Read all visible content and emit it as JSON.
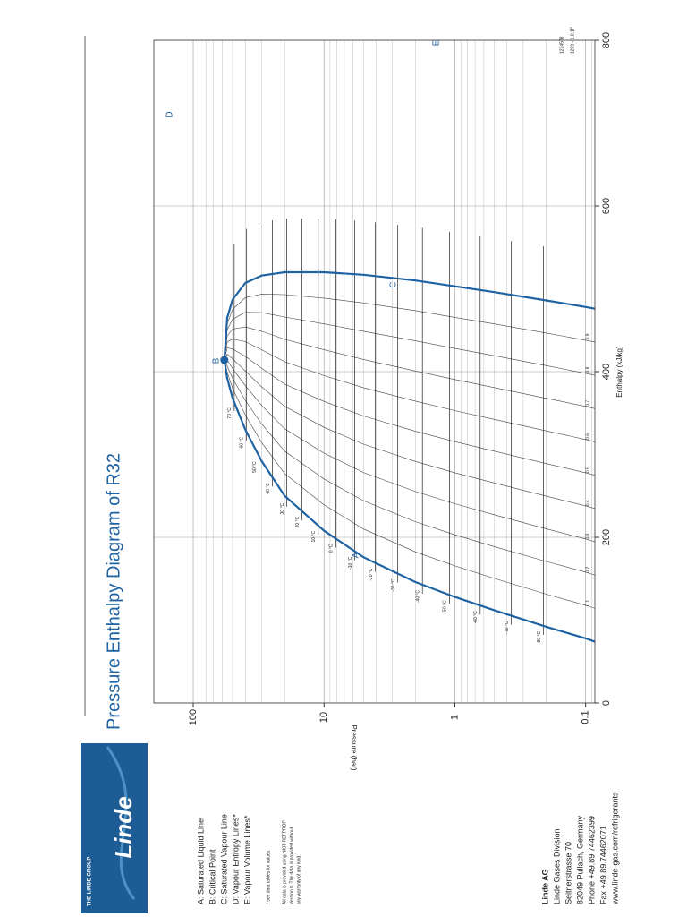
{
  "header": {
    "title": "Pressure Enthalpy Diagram of R32"
  },
  "logo": {
    "group": "THE LINDE GROUP",
    "brand": "Linde"
  },
  "legend_items": [
    "A: Saturated Liquid Line",
    "B: Critical Point",
    "C: Saturated Vapour Line",
    "D: Vapour Entropy Lines*",
    "E: Vapour Volume Lines*"
  ],
  "footnote": "* see data tables for values",
  "disclaimer": [
    "All data is provided using NIST REFPROP",
    "Version 8. The data is provided without",
    "any warranty of any kind."
  ],
  "company": {
    "name": "Linde AG",
    "lines": [
      "Linde Gases Division",
      "Seitnerstrasse 70",
      "82049 Pullach, Germany",
      "Phone +49.89.74462399",
      "Fax +49.89.74462071",
      "www.linde-gas.com/refrigerants"
    ]
  },
  "doc_code": [
    "1234578",
    "1209 - 1.0.1P"
  ],
  "chart_data": {
    "type": "ph-diagram",
    "x_label": "Enthalpy (kJ/kg)",
    "y_label": "Pressure (bar)",
    "xlim": [
      0,
      800
    ],
    "xticks": [
      0,
      200,
      400,
      600,
      800
    ],
    "ylim": [
      0.085,
      200
    ],
    "yticks": [
      0.1,
      1,
      10,
      100
    ],
    "log_y": true,
    "grid": true,
    "minor_grid": true,
    "color": "#1f63a3",
    "saturation": {
      "pressure": [
        0.085,
        0.1,
        0.2,
        0.5,
        1,
        2,
        5,
        10,
        20,
        30,
        40,
        50,
        55,
        57.8
      ],
      "liquid_enthalpy": [
        74,
        78,
        92,
        112,
        128,
        146,
        176,
        208,
        250,
        292,
        330,
        368,
        392,
        414
      ],
      "vapour_enthalpy": [
        476,
        478,
        486,
        496,
        503,
        510,
        517,
        520,
        520,
        516,
        507,
        487,
        465,
        414
      ]
    },
    "critical_point": {
      "pressure": 57.8,
      "enthalpy": 414
    },
    "quality_lines": [
      0.1,
      0.2,
      0.3,
      0.4,
      0.5,
      0.6,
      0.7,
      0.8,
      0.9
    ],
    "isotherms": [
      {
        "label": "-80 °C",
        "pressure": 0.21
      },
      {
        "label": "-70 °C",
        "pressure": 0.37
      },
      {
        "label": "-60 °C",
        "pressure": 0.64
      },
      {
        "label": "-50 °C",
        "pressure": 1.1
      },
      {
        "label": "-40 °C",
        "pressure": 1.77
      },
      {
        "label": "-30 °C",
        "pressure": 2.73
      },
      {
        "label": "-20 °C",
        "pressure": 4.06
      },
      {
        "label": "-10 °C",
        "pressure": 5.83
      },
      {
        "label": "0 °C",
        "pressure": 8.13
      },
      {
        "label": "10 °C",
        "pressure": 11.07
      },
      {
        "label": "20 °C",
        "pressure": 14.75
      },
      {
        "label": "30 °C",
        "pressure": 19.28
      },
      {
        "label": "40 °C",
        "pressure": 24.78
      },
      {
        "label": "50 °C",
        "pressure": 31.4
      },
      {
        "label": "60 °C",
        "pressure": 39.3
      },
      {
        "label": "70 °C",
        "pressure": 48.6
      }
    ],
    "annotations": [
      "A",
      "B",
      "C",
      "D",
      "E"
    ]
  }
}
